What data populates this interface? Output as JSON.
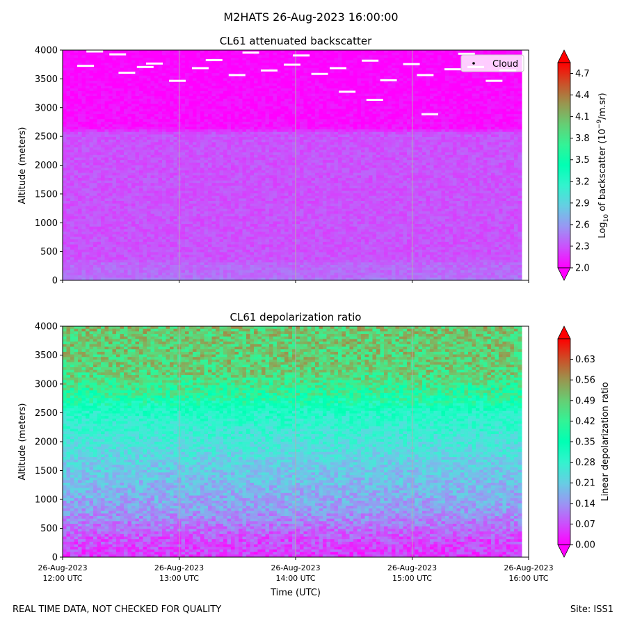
{
  "figure": {
    "suptitle": "M2HATS 26-Aug-2023 16:00:00",
    "footer_left": "REAL TIME DATA, NOT CHECKED FOR QUALITY",
    "footer_right": "Site: ISS1"
  },
  "chart_data": [
    {
      "type": "heatmap",
      "title": "CL61 attenuated backscatter",
      "ylabel": "Altitude (meters)",
      "xlabel": "",
      "ylim": [
        0,
        4000
      ],
      "yticks": [
        0,
        500,
        1000,
        1500,
        2000,
        2500,
        3000,
        3500,
        4000
      ],
      "xticks": [
        {
          "l1": "26-Aug-2023",
          "l2": "12:00 UTC"
        },
        {
          "l1": "26-Aug-2023",
          "l2": "13:00 UTC"
        },
        {
          "l1": "26-Aug-2023",
          "l2": "14:00 UTC"
        },
        {
          "l1": "26-Aug-2023",
          "l2": "15:00 UTC"
        },
        {
          "l1": "26-Aug-2023",
          "l2": "16:00 UTC"
        }
      ],
      "xtick_labels_shown": false,
      "grid": "vertical lines at hourly ticks",
      "colormap": "rainbow",
      "colorbar": {
        "label_prefix": "Log",
        "label_sub": "10",
        "label_mid": " of backscatter (10",
        "label_sup": "−9",
        "label_suffix": "/m.sr)",
        "ticks": [
          "2.0",
          "2.3",
          "2.6",
          "2.9",
          "3.2",
          "3.5",
          "3.8",
          "4.1",
          "4.4",
          "4.7"
        ],
        "range": [
          2.0,
          4.85
        ],
        "extend": "both"
      },
      "legend": {
        "label": "Cloud",
        "placement": "top-right",
        "marker_color": "#000000"
      },
      "profile": [
        {
          "altitude": 0,
          "value": 2.55
        },
        {
          "altitude": 40,
          "value": 2.4
        },
        {
          "altitude": 300,
          "value": 2.38
        },
        {
          "altitude": 350,
          "value": 2.3
        },
        {
          "altitude": 2550,
          "value": 2.3
        },
        {
          "altitude": 2650,
          "value": 2.05
        },
        {
          "altitude": 4000,
          "value": 2.0
        }
      ],
      "cloud_points": [
        {
          "t": 0.05,
          "alt": 3720
        },
        {
          "t": 0.07,
          "alt": 3970
        },
        {
          "t": 0.12,
          "alt": 3920
        },
        {
          "t": 0.14,
          "alt": 3600
        },
        {
          "t": 0.18,
          "alt": 3700
        },
        {
          "t": 0.2,
          "alt": 3760
        },
        {
          "t": 0.25,
          "alt": 3460
        },
        {
          "t": 0.3,
          "alt": 3680
        },
        {
          "t": 0.33,
          "alt": 3820
        },
        {
          "t": 0.38,
          "alt": 3560
        },
        {
          "t": 0.41,
          "alt": 3950
        },
        {
          "t": 0.45,
          "alt": 3640
        },
        {
          "t": 0.5,
          "alt": 3740
        },
        {
          "t": 0.52,
          "alt": 3900
        },
        {
          "t": 0.56,
          "alt": 3580
        },
        {
          "t": 0.6,
          "alt": 3680
        },
        {
          "t": 0.62,
          "alt": 3270
        },
        {
          "t": 0.67,
          "alt": 3810
        },
        {
          "t": 0.68,
          "alt": 3130
        },
        {
          "t": 0.71,
          "alt": 3470
        },
        {
          "t": 0.76,
          "alt": 3750
        },
        {
          "t": 0.79,
          "alt": 3560
        },
        {
          "t": 0.8,
          "alt": 2880
        },
        {
          "t": 0.85,
          "alt": 3660
        },
        {
          "t": 0.88,
          "alt": 3930
        },
        {
          "t": 0.9,
          "alt": 3700
        },
        {
          "t": 0.94,
          "alt": 3460
        },
        {
          "t": 0.97,
          "alt": 3640
        }
      ]
    },
    {
      "type": "heatmap",
      "title": "CL61 depolarization ratio",
      "ylabel": "Altitude (meters)",
      "xlabel": "Time (UTC)",
      "ylim": [
        0,
        4000
      ],
      "yticks": [
        0,
        500,
        1000,
        1500,
        2000,
        2500,
        3000,
        3500,
        4000
      ],
      "xticks": [
        {
          "l1": "26-Aug-2023",
          "l2": "12:00 UTC"
        },
        {
          "l1": "26-Aug-2023",
          "l2": "13:00 UTC"
        },
        {
          "l1": "26-Aug-2023",
          "l2": "14:00 UTC"
        },
        {
          "l1": "26-Aug-2023",
          "l2": "15:00 UTC"
        },
        {
          "l1": "26-Aug-2023",
          "l2": "16:00 UTC"
        }
      ],
      "xtick_labels_shown": true,
      "grid": "vertical lines at hourly ticks",
      "colormap": "rainbow",
      "colorbar": {
        "label": "Linear depolarization ratio",
        "ticks": [
          "0.00",
          "0.07",
          "0.14",
          "0.21",
          "0.28",
          "0.35",
          "0.42",
          "0.49",
          "0.56",
          "0.63"
        ],
        "range": [
          0.0,
          0.7
        ],
        "extend": "both"
      },
      "profile": [
        {
          "altitude": 0,
          "value": 0.05
        },
        {
          "altitude": 300,
          "value": 0.07
        },
        {
          "altitude": 800,
          "value": 0.15
        },
        {
          "altitude": 1500,
          "value": 0.2
        },
        {
          "altitude": 2000,
          "value": 0.25
        },
        {
          "altitude": 2500,
          "value": 0.3
        },
        {
          "altitude": 2800,
          "value": 0.4
        },
        {
          "altitude": 3200,
          "value": 0.48
        },
        {
          "altitude": 4000,
          "value": 0.5
        }
      ]
    }
  ]
}
